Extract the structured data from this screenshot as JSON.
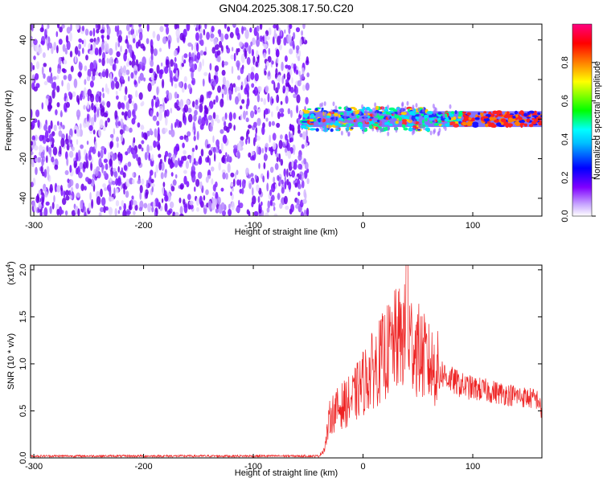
{
  "title": "GN04.2025.308.17.50.C20",
  "chart_data": [
    {
      "type": "heatmap",
      "xlabel": "Height of straight line (km)",
      "ylabel": "Frequency (Hz)",
      "xlim": [
        -303,
        163
      ],
      "ylim": [
        -49,
        48
      ],
      "xticks": [
        -300,
        -200,
        -100,
        0,
        100
      ],
      "yticks": [
        -40,
        -20,
        0,
        20,
        40
      ],
      "xtick_labels": [
        "-300",
        "-200",
        "-100",
        "0",
        "100"
      ],
      "ytick_labels": [
        "-40",
        "-20",
        "0",
        "20",
        "40"
      ],
      "noise_region": {
        "x": [
          -303,
          -50
        ],
        "y": [
          -49,
          48
        ]
      },
      "signal_band_center_hz": 0,
      "signal_band_halfwidth_hz": 4,
      "signal_x_range": [
        -55,
        163
      ],
      "colorbar": {
        "label": "Normalized spectral amplitude",
        "range": [
          0.0,
          1.0
        ],
        "ticks": [
          0.0,
          0.2,
          0.4,
          0.6,
          0.8
        ],
        "tick_labels": [
          "0.0",
          "0.2",
          "0.4",
          "0.6",
          "0.8"
        ],
        "colormap": [
          "#ffffff",
          "#8000ff",
          "#0000ff",
          "#00ffff",
          "#00ff00",
          "#ffff00",
          "#ff8000",
          "#ff0000",
          "#ff0080"
        ]
      }
    },
    {
      "type": "line",
      "xlabel": "Height of straight line (km)",
      "ylabel": "SNR (10 * v/v)",
      "y_multiplier_label": "(x10",
      "y_multiplier_exp": "4",
      "y_multiplier_close": ")",
      "xlim": [
        -303,
        163
      ],
      "ylim": [
        0.0,
        2.05
      ],
      "xticks": [
        -300,
        -200,
        -100,
        0,
        100
      ],
      "yticks": [
        0.0,
        0.5,
        1.0,
        1.5,
        2.0
      ],
      "xtick_labels": [
        "-300",
        "-200",
        "-100",
        "0",
        "100"
      ],
      "ytick_labels": [
        "0.0",
        "0.5",
        "1.0",
        "1.5",
        "2.0"
      ],
      "color": "#ee2222",
      "envelope_x": [
        -303,
        -40,
        -35,
        -30,
        -20,
        -10,
        0,
        10,
        20,
        30,
        40,
        50,
        60,
        70,
        80,
        90,
        100,
        110,
        120,
        130,
        140,
        150,
        160,
        163
      ],
      "envelope_y": [
        0.02,
        0.02,
        0.1,
        0.45,
        0.55,
        0.62,
        0.8,
        0.95,
        1.1,
        1.25,
        1.3,
        1.15,
        1.0,
        0.92,
        0.83,
        0.77,
        0.74,
        0.72,
        0.7,
        0.68,
        0.66,
        0.64,
        0.62,
        0.45
      ],
      "peak": {
        "x": 40,
        "y": 2.05
      }
    }
  ]
}
